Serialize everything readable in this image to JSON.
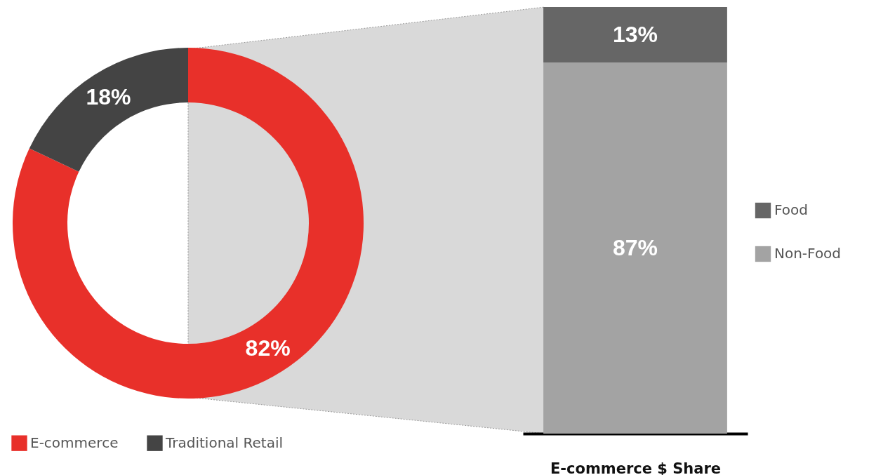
{
  "chart_data": [
    {
      "type": "donut",
      "categories": [
        "E-commerce",
        "Traditional Retail"
      ],
      "values": [
        82,
        18
      ],
      "value_labels": [
        "82%",
        "18%"
      ],
      "colors": [
        "#e8302a",
        "#444444"
      ],
      "legend": "bottom left"
    },
    {
      "type": "bar",
      "stacked": true,
      "categories": [
        null
      ],
      "xlabel": "E-commerce $ Share",
      "legend": "right",
      "series": [
        {
          "name": "Non-Food",
          "color": "#a3a3a3",
          "values": [
            87
          ],
          "value_labels": [
            "87%"
          ]
        },
        {
          "name": "Food",
          "color": "#666666",
          "values": [
            13
          ],
          "value_labels": [
            "13%"
          ]
        }
      ]
    }
  ]
}
